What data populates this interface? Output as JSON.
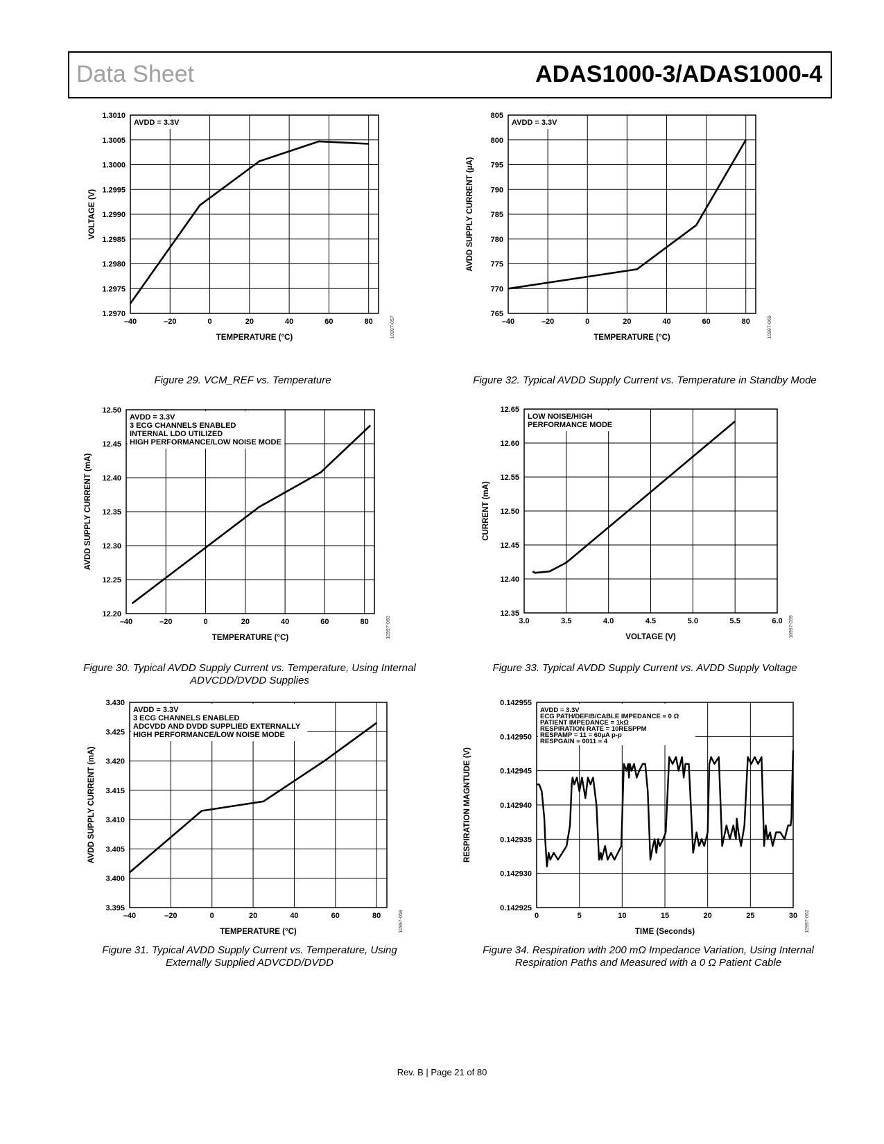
{
  "header": {
    "left": "Data Sheet",
    "right": "ADAS1000-3/ADAS1000-4"
  },
  "footer": "Rev. B | Page 21 of 80",
  "chart_data": [
    {
      "type": "line",
      "id": "fig29",
      "caption": "Figure 29. VCM_REF vs. Temperature",
      "annotation": [
        "AVDD = 3.3V"
      ],
      "xlabel": "TEMPERATURE (°C)",
      "ylabel": "VOLTAGE (V)",
      "code": "10997-057",
      "xlim": [
        -40,
        85
      ],
      "ylim": [
        1.297,
        1.301
      ],
      "xticks": [
        -40,
        -20,
        0,
        20,
        40,
        60,
        80
      ],
      "xtick_labels": [
        "–40",
        "–20",
        "0",
        "20",
        "40",
        "60",
        "80"
      ],
      "yticks": [
        1.297,
        1.2975,
        1.298,
        1.2985,
        1.299,
        1.2995,
        1.3,
        1.3005,
        1.301
      ],
      "ytick_labels": [
        "1.2970",
        "1.2975",
        "1.2980",
        "1.2985",
        "1.2990",
        "1.2995",
        "1.3000",
        "1.3005",
        "1.3010"
      ],
      "grid": true,
      "series": [
        {
          "x": [
            -40,
            -5,
            25,
            55,
            80
          ],
          "y": [
            1.2972,
            1.29918,
            1.30007,
            1.30047,
            1.30042
          ]
        }
      ]
    },
    {
      "type": "line",
      "id": "fig30",
      "caption": "Figure 30. Typical AVDD Supply Current vs. Temperature, Using Internal ADVCDD/DVDD Supplies",
      "annotation": [
        "AVDD = 3.3V",
        "3 ECG CHANNELS ENABLED",
        "INTERNAL LDO UTILIZED",
        "HIGH PERFORMANCE/LOW NOISE MODE"
      ],
      "xlabel": "TEMPERATURE (°C)",
      "ylabel": "AVDD SUPPLY CURRENT (mA)",
      "code": "10997-060",
      "xlim": [
        -40,
        85
      ],
      "ylim": [
        12.2,
        12.5
      ],
      "xticks": [
        -40,
        -20,
        0,
        20,
        40,
        60,
        80
      ],
      "xtick_labels": [
        "–40",
        "–20",
        "0",
        "20",
        "40",
        "60",
        "80"
      ],
      "yticks": [
        12.2,
        12.25,
        12.3,
        12.35,
        12.4,
        12.45,
        12.5
      ],
      "ytick_labels": [
        "12.20",
        "12.25",
        "12.30",
        "12.35",
        "12.40",
        "12.45",
        "12.50"
      ],
      "grid": true,
      "series": [
        {
          "x": [
            -37,
            27,
            58,
            83
          ],
          "y": [
            12.215,
            12.357,
            12.408,
            12.477
          ]
        }
      ]
    },
    {
      "type": "line",
      "id": "fig31",
      "caption": "Figure 31. Typical AVDD Supply Current vs. Temperature, Using Externally Supplied ADVCDD/DVDD",
      "annotation": [
        "AVDD = 3.3V",
        "3 ECG CHANNELS ENABLED",
        "ADCVDD AND DVDD SUPPLIED EXTERNALLY",
        "HIGH PERFORMANCE/LOW NOISE MODE"
      ],
      "xlabel": "TEMPERATURE (°C)",
      "ylabel": "AVDD SUPPLY CURRENT (mA)",
      "code": "10997-058",
      "xlim": [
        -40,
        85
      ],
      "ylim": [
        3.395,
        3.43
      ],
      "xticks": [
        -40,
        -20,
        0,
        20,
        40,
        60,
        80
      ],
      "xtick_labels": [
        "–40",
        "–20",
        "0",
        "20",
        "40",
        "60",
        "80"
      ],
      "yticks": [
        3.395,
        3.4,
        3.405,
        3.41,
        3.415,
        3.42,
        3.425,
        3.43
      ],
      "ytick_labels": [
        "3.395",
        "3.400",
        "3.405",
        "3.410",
        "3.415",
        "3.420",
        "3.425",
        "3.430"
      ],
      "grid": true,
      "series": [
        {
          "x": [
            -40,
            -5,
            25,
            55,
            80
          ],
          "y": [
            3.401,
            3.4115,
            3.4131,
            3.4201,
            3.4265
          ]
        }
      ]
    },
    {
      "type": "line",
      "id": "fig32",
      "caption": "Figure 32. Typical AVDD Supply Current vs. Temperature in Standby Mode",
      "annotation": [
        "AVDD = 3.3V"
      ],
      "xlabel": "TEMPERATURE (°C)",
      "ylabel": "AVDD SUPPLY CURRENT (µA)",
      "code": "10997-069",
      "xlim": [
        -40,
        85
      ],
      "ylim": [
        765,
        805
      ],
      "xticks": [
        -40,
        -20,
        0,
        20,
        40,
        60,
        80
      ],
      "xtick_labels": [
        "–40",
        "–20",
        "0",
        "20",
        "40",
        "60",
        "80"
      ],
      "yticks": [
        765,
        770,
        775,
        780,
        785,
        790,
        795,
        800,
        805
      ],
      "ytick_labels": [
        "765",
        "770",
        "775",
        "780",
        "785",
        "790",
        "795",
        "800",
        "805"
      ],
      "grid": true,
      "series": [
        {
          "x": [
            -40,
            0,
            25,
            55,
            80
          ],
          "y": [
            770,
            772.4,
            773.9,
            782.8,
            800
          ]
        }
      ]
    },
    {
      "type": "line",
      "id": "fig33",
      "caption": "Figure 33. Typical AVDD Supply Current vs. AVDD Supply Voltage",
      "annotation": [
        "LOW NOISE/HIGH",
        "PERFORMANCE MODE"
      ],
      "xlabel": "VOLTAGE (V)",
      "ylabel": "CURRENT (mA)",
      "code": "10997-059",
      "xlim": [
        3.0,
        6.0
      ],
      "ylim": [
        12.35,
        12.65
      ],
      "xticks": [
        3.0,
        3.5,
        4.0,
        4.5,
        5.0,
        5.5,
        6.0
      ],
      "xtick_labels": [
        "3.0",
        "3.5",
        "4.0",
        "4.5",
        "5.0",
        "5.5",
        "6.0"
      ],
      "yticks": [
        12.35,
        12.4,
        12.45,
        12.5,
        12.55,
        12.6,
        12.65
      ],
      "ytick_labels": [
        "12.35",
        "12.40",
        "12.45",
        "12.50",
        "12.55",
        "12.60",
        "12.65"
      ],
      "grid": true,
      "series": [
        {
          "x": [
            3.1,
            3.13,
            3.3,
            3.5,
            5.5
          ],
          "y": [
            12.411,
            12.409,
            12.411,
            12.424,
            12.632
          ]
        }
      ]
    },
    {
      "type": "line",
      "id": "fig34",
      "caption": "Figure 34. Respiration with 200 mΩ Impedance Variation, Using Internal Respiration Paths and Measured with a 0 Ω Patient Cable",
      "annotation": [
        "AVDD = 3.3V",
        "ECG PATH/DEFIB/CABLE IMPEDANCE = 0 Ω",
        "PATIENT IMPEDANCE = 1kΩ",
        "RESPIRATION RATE = 10RESPPM",
        "RESPAMP = 11 = 60µA p-p",
        "RESPGAIN = 0011 = 4"
      ],
      "xlabel": "TIME (Seconds)",
      "ylabel": "RESPIRATION MAGNTUDE (V)",
      "code": "10997-062",
      "xlim": [
        0,
        30
      ],
      "ylim": [
        0.142925,
        0.142955
      ],
      "xticks": [
        0,
        5,
        10,
        15,
        20,
        25,
        30
      ],
      "xtick_labels": [
        "0",
        "5",
        "10",
        "15",
        "20",
        "25",
        "30"
      ],
      "yticks": [
        0.142925,
        0.14293,
        0.142935,
        0.14294,
        0.142945,
        0.14295,
        0.142955
      ],
      "ytick_labels": [
        "0.142925",
        "0.142930",
        "0.142935",
        "0.142940",
        "0.142945",
        "0.142950",
        "0.142955"
      ],
      "grid": true,
      "series": [
        {
          "x": [
            0,
            0.3,
            0.6,
            0.9,
            1.0,
            1.2,
            1.4,
            1.6,
            2.0,
            2.5,
            3.0,
            3.5,
            3.9,
            4.1,
            4.2,
            4.4,
            4.7,
            5.0,
            5.3,
            5.7,
            6.0,
            6.3,
            6.6,
            7.0,
            7.3,
            7.5,
            7.6,
            7.8,
            8.0,
            8.3,
            8.7,
            9.1,
            9.5,
            9.9,
            10.2,
            10.5,
            10.7,
            10.8,
            10.9,
            11.1,
            11.4,
            11.7,
            12.0,
            12.4,
            12.7,
            13.0,
            13.3,
            13.6,
            13.8,
            14.0,
            14.2,
            14.4,
            14.8,
            15.1,
            15.5,
            15.9,
            16.3,
            16.6,
            17.0,
            17.2,
            17.4,
            17.8,
            18.3,
            18.7,
            19.0,
            19.3,
            19.6,
            20.0,
            20.2,
            20.4,
            20.8,
            21.3,
            21.7,
            22.2,
            22.6,
            23.0,
            23.3,
            23.4,
            23.6,
            23.9,
            24.3,
            24.7,
            25.1,
            25.5,
            25.9,
            26.3,
            26.6,
            26.8,
            27.0,
            27.3,
            27.6,
            28.0,
            28.5,
            29.0,
            29.4,
            29.7,
            29.8,
            29.9,
            30.0
          ],
          "y": [
            0.142943,
            0.142943,
            0.142942,
            0.142938,
            0.142935,
            0.142931,
            0.142933,
            0.142932,
            0.142933,
            0.142932,
            0.142933,
            0.142934,
            0.142937,
            0.142943,
            0.142944,
            0.142943,
            0.142944,
            0.142942,
            0.142944,
            0.142941,
            0.142944,
            0.142943,
            0.142944,
            0.14294,
            0.142932,
            0.142933,
            0.142932,
            0.142933,
            0.142934,
            0.142932,
            0.142933,
            0.142932,
            0.142933,
            0.142934,
            0.142946,
            0.142945,
            0.142946,
            0.142944,
            0.142946,
            0.142945,
            0.142946,
            0.142944,
            0.142945,
            0.142946,
            0.142946,
            0.142942,
            0.142932,
            0.142934,
            0.142935,
            0.142933,
            0.142935,
            0.142934,
            0.142935,
            0.142936,
            0.142947,
            0.142946,
            0.142947,
            0.142945,
            0.142947,
            0.142944,
            0.142946,
            0.142946,
            0.142933,
            0.142936,
            0.142934,
            0.142935,
            0.142934,
            0.142936,
            0.142946,
            0.142947,
            0.142946,
            0.142947,
            0.142934,
            0.142937,
            0.142935,
            0.142937,
            0.142935,
            0.142938,
            0.142936,
            0.142934,
            0.142937,
            0.142947,
            0.142946,
            0.142947,
            0.142946,
            0.142947,
            0.142934,
            0.142937,
            0.142935,
            0.142936,
            0.142934,
            0.142936,
            0.142936,
            0.142935,
            0.142937,
            0.142937,
            0.142938,
            0.142944,
            0.142948
          ]
        }
      ]
    }
  ]
}
